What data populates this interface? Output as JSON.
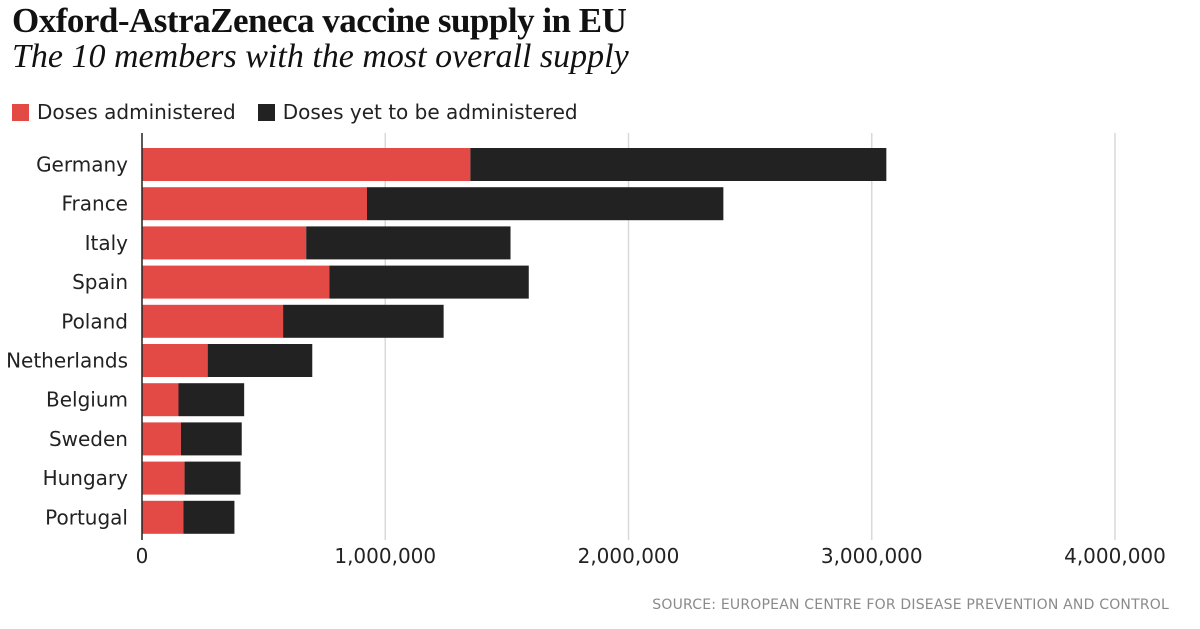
{
  "header": {
    "title": "Oxford-AstraZeneca vaccine supply in EU",
    "subtitle": "The 10 members with the most overall supply"
  },
  "legend": [
    {
      "label": "Doses administered",
      "color": "#e34a45"
    },
    {
      "label": "Doses yet to be administered",
      "color": "#222222"
    }
  ],
  "source": "SOURCE: EUROPEAN CENTRE FOR DISEASE PREVENTION AND CONTROL",
  "chart_data": {
    "type": "bar",
    "orientation": "horizontal",
    "stacked": true,
    "title": "Oxford-AstraZeneca vaccine supply in EU",
    "subtitle": "The 10 members with the most overall supply",
    "xlabel": "",
    "ylabel": "",
    "categories": [
      "Germany",
      "France",
      "Italy",
      "Spain",
      "Poland",
      "Netherlands",
      "Belgium",
      "Sweden",
      "Hungary",
      "Portugal"
    ],
    "series": [
      {
        "name": "Doses administered",
        "color": "#e34a45",
        "values": [
          1350000,
          925000,
          675000,
          770000,
          580000,
          270000,
          150000,
          160000,
          175000,
          170000
        ]
      },
      {
        "name": "Doses yet to be administered",
        "color": "#222222",
        "values": [
          1710000,
          1465000,
          840000,
          820000,
          660000,
          430000,
          270000,
          250000,
          230000,
          210000
        ]
      }
    ],
    "xlim": [
      0,
      4000000
    ],
    "xticks": [
      0,
      1000000,
      2000000,
      3000000,
      4000000
    ],
    "xtick_labels": [
      "0",
      "1,000,000",
      "2,000,000",
      "3,000,000",
      "4,000,000"
    ],
    "grid": true,
    "legend_position": "top-left"
  }
}
